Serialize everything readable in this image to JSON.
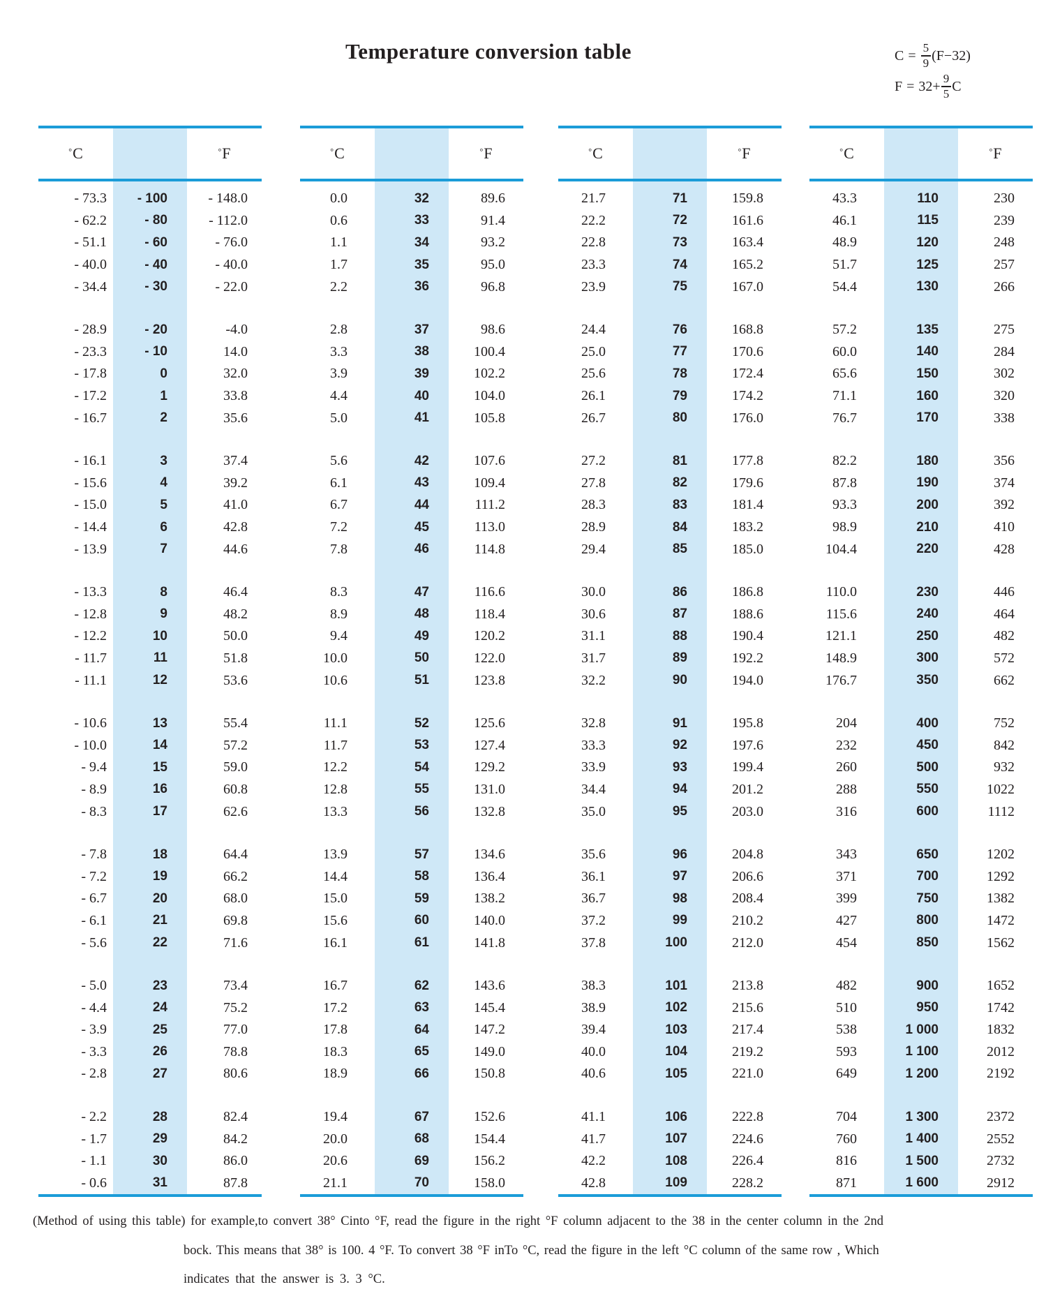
{
  "title": "Temperature conversion table",
  "formulas": {
    "f1": {
      "lhs": "C",
      "eq": "=",
      "num": "5",
      "den": "9",
      "tail": "(F−32)"
    },
    "f2": {
      "lhs": "F",
      "eq": "=",
      "mid": "32+",
      "num": "9",
      "den": "5",
      "tail": "C"
    }
  },
  "table": {
    "header": {
      "deg": "°",
      "c": "C",
      "f": "F"
    },
    "groups": [
      [
        [
          [
            "- 73.3",
            "- 100",
            "- 148.0"
          ],
          [
            "- 62.2",
            "- 80",
            "- 112.0"
          ],
          [
            "- 51.1",
            "- 60",
            "- 76.0"
          ],
          [
            "- 40.0",
            "- 40",
            "- 40.0"
          ],
          [
            "- 34.4",
            "- 30",
            "- 22.0"
          ]
        ],
        [
          [
            "- 28.9",
            "- 20",
            "-4.0"
          ],
          [
            "- 23.3",
            "- 10",
            "14.0"
          ],
          [
            "- 17.8",
            "0",
            "32.0"
          ],
          [
            "- 17.2",
            "1",
            "33.8"
          ],
          [
            "- 16.7",
            "2",
            "35.6"
          ]
        ],
        [
          [
            "- 16.1",
            "3",
            "37.4"
          ],
          [
            "- 15.6",
            "4",
            "39.2"
          ],
          [
            "- 15.0",
            "5",
            "41.0"
          ],
          [
            "- 14.4",
            "6",
            "42.8"
          ],
          [
            "- 13.9",
            "7",
            "44.6"
          ]
        ],
        [
          [
            "- 13.3",
            "8",
            "46.4"
          ],
          [
            "- 12.8",
            "9",
            "48.2"
          ],
          [
            "- 12.2",
            "10",
            "50.0"
          ],
          [
            "- 11.7",
            "11",
            "51.8"
          ],
          [
            "- 11.1",
            "12",
            "53.6"
          ]
        ],
        [
          [
            "- 10.6",
            "13",
            "55.4"
          ],
          [
            "- 10.0",
            "14",
            "57.2"
          ],
          [
            "- 9.4",
            "15",
            "59.0"
          ],
          [
            "- 8.9",
            "16",
            "60.8"
          ],
          [
            "- 8.3",
            "17",
            "62.6"
          ]
        ],
        [
          [
            "- 7.8",
            "18",
            "64.4"
          ],
          [
            "- 7.2",
            "19",
            "66.2"
          ],
          [
            "- 6.7",
            "20",
            "68.0"
          ],
          [
            "- 6.1",
            "21",
            "69.8"
          ],
          [
            "- 5.6",
            "22",
            "71.6"
          ]
        ],
        [
          [
            "- 5.0",
            "23",
            "73.4"
          ],
          [
            "- 4.4",
            "24",
            "75.2"
          ],
          [
            "- 3.9",
            "25",
            "77.0"
          ],
          [
            "- 3.3",
            "26",
            "78.8"
          ],
          [
            "- 2.8",
            "27",
            "80.6"
          ]
        ],
        [
          [
            "- 2.2",
            "28",
            "82.4"
          ],
          [
            "- 1.7",
            "29",
            "84.2"
          ],
          [
            "- 1.1",
            "30",
            "86.0"
          ],
          [
            "- 0.6",
            "31",
            "87.8"
          ]
        ]
      ],
      [
        [
          [
            "0.0",
            "32",
            "89.6"
          ],
          [
            "0.6",
            "33",
            "91.4"
          ],
          [
            "1.1",
            "34",
            "93.2"
          ],
          [
            "1.7",
            "35",
            "95.0"
          ],
          [
            "2.2",
            "36",
            "96.8"
          ]
        ],
        [
          [
            "2.8",
            "37",
            "98.6"
          ],
          [
            "3.3",
            "38",
            "100.4"
          ],
          [
            "3.9",
            "39",
            "102.2"
          ],
          [
            "4.4",
            "40",
            "104.0"
          ],
          [
            "5.0",
            "41",
            "105.8"
          ]
        ],
        [
          [
            "5.6",
            "42",
            "107.6"
          ],
          [
            "6.1",
            "43",
            "109.4"
          ],
          [
            "6.7",
            "44",
            "111.2"
          ],
          [
            "7.2",
            "45",
            "113.0"
          ],
          [
            "7.8",
            "46",
            "114.8"
          ]
        ],
        [
          [
            "8.3",
            "47",
            "116.6"
          ],
          [
            "8.9",
            "48",
            "118.4"
          ],
          [
            "9.4",
            "49",
            "120.2"
          ],
          [
            "10.0",
            "50",
            "122.0"
          ],
          [
            "10.6",
            "51",
            "123.8"
          ]
        ],
        [
          [
            "11.1",
            "52",
            "125.6"
          ],
          [
            "11.7",
            "53",
            "127.4"
          ],
          [
            "12.2",
            "54",
            "129.2"
          ],
          [
            "12.8",
            "55",
            "131.0"
          ],
          [
            "13.3",
            "56",
            "132.8"
          ]
        ],
        [
          [
            "13.9",
            "57",
            "134.6"
          ],
          [
            "14.4",
            "58",
            "136.4"
          ],
          [
            "15.0",
            "59",
            "138.2"
          ],
          [
            "15.6",
            "60",
            "140.0"
          ],
          [
            "16.1",
            "61",
            "141.8"
          ]
        ],
        [
          [
            "16.7",
            "62",
            "143.6"
          ],
          [
            "17.2",
            "63",
            "145.4"
          ],
          [
            "17.8",
            "64",
            "147.2"
          ],
          [
            "18.3",
            "65",
            "149.0"
          ],
          [
            "18.9",
            "66",
            "150.8"
          ]
        ],
        [
          [
            "19.4",
            "67",
            "152.6"
          ],
          [
            "20.0",
            "68",
            "154.4"
          ],
          [
            "20.6",
            "69",
            "156.2"
          ],
          [
            "21.1",
            "70",
            "158.0"
          ]
        ]
      ],
      [
        [
          [
            "21.7",
            "71",
            "159.8"
          ],
          [
            "22.2",
            "72",
            "161.6"
          ],
          [
            "22.8",
            "73",
            "163.4"
          ],
          [
            "23.3",
            "74",
            "165.2"
          ],
          [
            "23.9",
            "75",
            "167.0"
          ]
        ],
        [
          [
            "24.4",
            "76",
            "168.8"
          ],
          [
            "25.0",
            "77",
            "170.6"
          ],
          [
            "25.6",
            "78",
            "172.4"
          ],
          [
            "26.1",
            "79",
            "174.2"
          ],
          [
            "26.7",
            "80",
            "176.0"
          ]
        ],
        [
          [
            "27.2",
            "81",
            "177.8"
          ],
          [
            "27.8",
            "82",
            "179.6"
          ],
          [
            "28.3",
            "83",
            "181.4"
          ],
          [
            "28.9",
            "84",
            "183.2"
          ],
          [
            "29.4",
            "85",
            "185.0"
          ]
        ],
        [
          [
            "30.0",
            "86",
            "186.8"
          ],
          [
            "30.6",
            "87",
            "188.6"
          ],
          [
            "31.1",
            "88",
            "190.4"
          ],
          [
            "31.7",
            "89",
            "192.2"
          ],
          [
            "32.2",
            "90",
            "194.0"
          ]
        ],
        [
          [
            "32.8",
            "91",
            "195.8"
          ],
          [
            "33.3",
            "92",
            "197.6"
          ],
          [
            "33.9",
            "93",
            "199.4"
          ],
          [
            "34.4",
            "94",
            "201.2"
          ],
          [
            "35.0",
            "95",
            "203.0"
          ]
        ],
        [
          [
            "35.6",
            "96",
            "204.8"
          ],
          [
            "36.1",
            "97",
            "206.6"
          ],
          [
            "36.7",
            "98",
            "208.4"
          ],
          [
            "37.2",
            "99",
            "210.2"
          ],
          [
            "37.8",
            "100",
            "212.0"
          ]
        ],
        [
          [
            "38.3",
            "101",
            "213.8"
          ],
          [
            "38.9",
            "102",
            "215.6"
          ],
          [
            "39.4",
            "103",
            "217.4"
          ],
          [
            "40.0",
            "104",
            "219.2"
          ],
          [
            "40.6",
            "105",
            "221.0"
          ]
        ],
        [
          [
            "41.1",
            "106",
            "222.8"
          ],
          [
            "41.7",
            "107",
            "224.6"
          ],
          [
            "42.2",
            "108",
            "226.4"
          ],
          [
            "42.8",
            "109",
            "228.2"
          ]
        ]
      ],
      [
        [
          [
            "43.3",
            "110",
            "230"
          ],
          [
            "46.1",
            "115",
            "239"
          ],
          [
            "48.9",
            "120",
            "248"
          ],
          [
            "51.7",
            "125",
            "257"
          ],
          [
            "54.4",
            "130",
            "266"
          ]
        ],
        [
          [
            "57.2",
            "135",
            "275"
          ],
          [
            "60.0",
            "140",
            "284"
          ],
          [
            "65.6",
            "150",
            "302"
          ],
          [
            "71.1",
            "160",
            "320"
          ],
          [
            "76.7",
            "170",
            "338"
          ]
        ],
        [
          [
            "82.2",
            "180",
            "356"
          ],
          [
            "87.8",
            "190",
            "374"
          ],
          [
            "93.3",
            "200",
            "392"
          ],
          [
            "98.9",
            "210",
            "410"
          ],
          [
            "104.4",
            "220",
            "428"
          ]
        ],
        [
          [
            "110.0",
            "230",
            "446"
          ],
          [
            "115.6",
            "240",
            "464"
          ],
          [
            "121.1",
            "250",
            "482"
          ],
          [
            "148.9",
            "300",
            "572"
          ],
          [
            "176.7",
            "350",
            "662"
          ]
        ],
        [
          [
            "204",
            "400",
            "752"
          ],
          [
            "232",
            "450",
            "842"
          ],
          [
            "260",
            "500",
            "932"
          ],
          [
            "288",
            "550",
            "1022"
          ],
          [
            "316",
            "600",
            "1112"
          ]
        ],
        [
          [
            "343",
            "650",
            "1202"
          ],
          [
            "371",
            "700",
            "1292"
          ],
          [
            "399",
            "750",
            "1382"
          ],
          [
            "427",
            "800",
            "1472"
          ],
          [
            "454",
            "850",
            "1562"
          ]
        ],
        [
          [
            "482",
            "900",
            "1652"
          ],
          [
            "510",
            "950",
            "1742"
          ],
          [
            "538",
            "1 000",
            "1832"
          ],
          [
            "593",
            "1 100",
            "2012"
          ],
          [
            "649",
            "1 200",
            "2192"
          ]
        ],
        [
          [
            "704",
            "1 300",
            "2372"
          ],
          [
            "760",
            "1 400",
            "2552"
          ],
          [
            "816",
            "1 500",
            "2732"
          ],
          [
            "871",
            "1 600",
            "2912"
          ]
        ]
      ]
    ]
  },
  "footer": {
    "line1": "(Method of using this table) for example,to convert 38° Cinto °F, read  the  figure  in  the  right  °F  column  adjacent to the 38 in the center column in the 2nd",
    "line2": "bock. This means that 38° is 100. 4 °F. To convert 38 °F inTo °C, read the figure in the left °C column of  the  same  row  , Which",
    "line3": "indicates  that  the  answer  is  3. 3 °C."
  },
  "colors": {
    "rule_blue": "#1b9cd8",
    "band_blue": "#cfe8f7",
    "ink": "#231f20"
  }
}
